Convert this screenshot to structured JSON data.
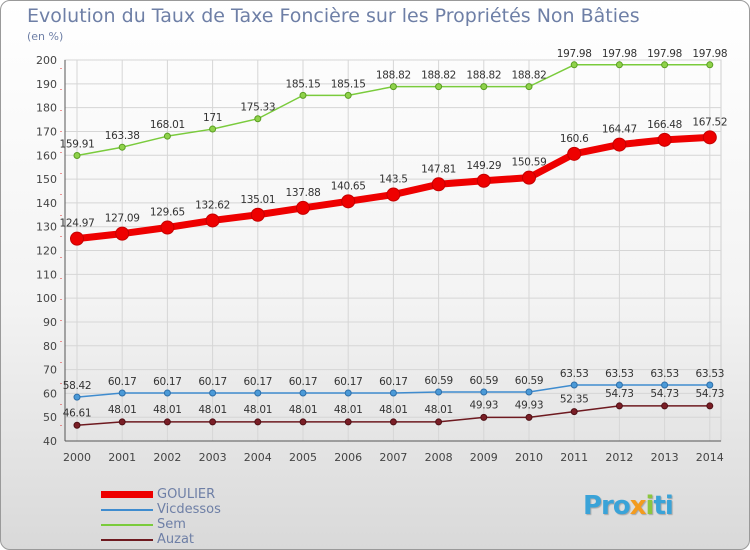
{
  "chart_data": {
    "type": "line",
    "title": "Evolution du Taux de Taxe Foncière sur les Propriétés Non Bâties",
    "subtitle": "(en %)",
    "xlabel": "",
    "ylabel": "",
    "ylim": [
      40,
      200
    ],
    "yticks": [
      40,
      50,
      60,
      70,
      80,
      90,
      100,
      110,
      120,
      130,
      140,
      150,
      160,
      170,
      180,
      190,
      200
    ],
    "x": [
      "2000",
      "2001",
      "2002",
      "2003",
      "2004",
      "2005",
      "2006",
      "2007",
      "2008",
      "2009",
      "2010",
      "2011",
      "2012",
      "2013",
      "2014"
    ],
    "grid": true,
    "series": [
      {
        "name": "GOULIER",
        "color": "#ee0000",
        "values": [
          124.97,
          127.09,
          129.65,
          132.62,
          135.01,
          137.88,
          140.65,
          143.5,
          147.81,
          149.29,
          150.59,
          160.6,
          164.47,
          166.48,
          167.52
        ]
      },
      {
        "name": "Vicdessos",
        "color": "#3f8ccf",
        "values": [
          58.42,
          60.17,
          60.17,
          60.17,
          60.17,
          60.17,
          60.17,
          60.17,
          60.59,
          60.59,
          60.59,
          63.53,
          63.53,
          63.53,
          63.53
        ]
      },
      {
        "name": "Sem",
        "color": "#7acb3c",
        "values": [
          159.91,
          163.38,
          168.01,
          171,
          175.33,
          185.15,
          185.15,
          188.82,
          188.82,
          188.82,
          188.82,
          197.98,
          197.98,
          197.98,
          197.98
        ]
      },
      {
        "name": "Auzat",
        "color": "#6e1a20",
        "values": [
          46.61,
          48.01,
          48.01,
          48.01,
          48.01,
          48.01,
          48.01,
          48.01,
          48.01,
          49.93,
          49.93,
          52.35,
          54.73,
          54.73,
          54.73
        ]
      }
    ],
    "value_labels": {
      "GOULIER": [
        "124.97",
        "127.09",
        "129.65",
        "132.62",
        "135.01",
        "137.88",
        "140.65",
        "143.5",
        "147.81",
        "149.29",
        "150.59",
        "160.6",
        "164.47",
        "166.48",
        "167.52"
      ],
      "Vicdessos": [
        "58.42",
        "60.17",
        "60.17",
        "60.17",
        "60.17",
        "60.17",
        "60.17",
        "60.17",
        "60.59",
        "60.59",
        "60.59",
        "63.53",
        "63.53",
        "63.53",
        "63.53"
      ],
      "Sem": [
        "159.91",
        "163.38",
        "168.01",
        "171",
        "175.33",
        "185.15",
        "185.15",
        "188.82",
        "188.82",
        "188.82",
        "188.82",
        "197.98",
        "197.98",
        "197.98",
        "197.98"
      ],
      "Auzat": [
        "46.61",
        "48.01",
        "48.01",
        "48.01",
        "48.01",
        "48.01",
        "48.01",
        "48.01",
        "48.01",
        "49.93",
        "49.93",
        "52.35",
        "54.73",
        "54.73",
        "54.73"
      ]
    },
    "legend_position": "bottom-left"
  },
  "branding": {
    "logo_parts": [
      "Pro",
      "x",
      "i",
      "ti"
    ]
  }
}
